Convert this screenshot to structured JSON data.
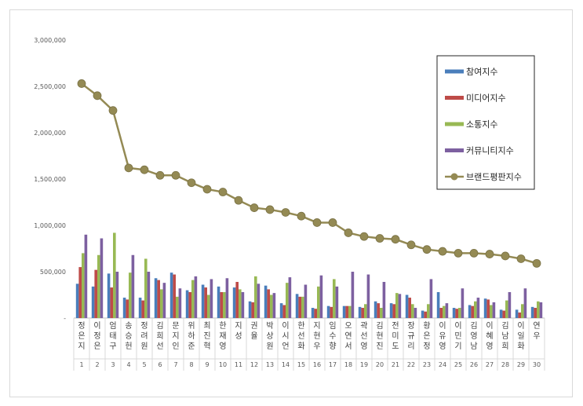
{
  "chart_data": {
    "type": "bar",
    "ylim": [
      0,
      3000000
    ],
    "yticks": [
      "-",
      "500,000",
      "1,000,000",
      "1,500,000",
      "2,000,000",
      "2,500,000",
      "3,000,000"
    ],
    "legend_position": "top-right",
    "grid": false,
    "categories": [
      "정은지",
      "이정은",
      "엄태구",
      "송승헌",
      "정려원",
      "김희선",
      "문지인",
      "위하준",
      "최진혁",
      "한재영",
      "지성",
      "권율",
      "박상원",
      "이시언",
      "한선화",
      "지현우",
      "임수향",
      "오연서",
      "곽선영",
      "김현진",
      "전미도",
      "장규리",
      "황은정",
      "이유영",
      "이민기",
      "김영남",
      "이혜영",
      "김남희",
      "이일화",
      "연우"
    ],
    "indices": [
      "1",
      "2",
      "3",
      "4",
      "5",
      "6",
      "7",
      "8",
      "9",
      "10",
      "11",
      "12",
      "13",
      "14",
      "15",
      "16",
      "17",
      "18",
      "19",
      "20",
      "21",
      "22",
      "23",
      "24",
      "25",
      "26",
      "27",
      "28",
      "29",
      "30"
    ],
    "series": [
      {
        "name": "참여지수",
        "color": "#4a7ebb",
        "values": [
          370000,
          340000,
          480000,
          220000,
          220000,
          430000,
          490000,
          300000,
          360000,
          340000,
          330000,
          180000,
          350000,
          160000,
          260000,
          110000,
          130000,
          130000,
          120000,
          180000,
          160000,
          250000,
          80000,
          280000,
          110000,
          140000,
          210000,
          90000,
          90000,
          120000
        ]
      },
      {
        "name": "미디어지수",
        "color": "#be4b48",
        "values": [
          550000,
          520000,
          330000,
          200000,
          190000,
          410000,
          470000,
          280000,
          330000,
          280000,
          390000,
          170000,
          310000,
          140000,
          230000,
          100000,
          120000,
          130000,
          110000,
          160000,
          150000,
          220000,
          70000,
          110000,
          100000,
          130000,
          200000,
          80000,
          60000,
          110000
        ]
      },
      {
        "name": "소통지수",
        "color": "#98b954",
        "values": [
          700000,
          680000,
          920000,
          490000,
          640000,
          310000,
          230000,
          410000,
          250000,
          280000,
          310000,
          450000,
          250000,
          380000,
          230000,
          340000,
          420000,
          130000,
          150000,
          110000,
          270000,
          150000,
          150000,
          130000,
          110000,
          180000,
          140000,
          190000,
          150000,
          180000
        ]
      },
      {
        "name": "커뮤니티지수",
        "color": "#7d60a0",
        "values": [
          900000,
          860000,
          500000,
          680000,
          500000,
          380000,
          320000,
          450000,
          420000,
          430000,
          280000,
          370000,
          270000,
          440000,
          360000,
          460000,
          340000,
          500000,
          470000,
          390000,
          260000,
          110000,
          420000,
          160000,
          320000,
          220000,
          170000,
          280000,
          320000,
          170000
        ]
      },
      {
        "name": "브랜드평판지수",
        "color": "#948a54",
        "type": "line",
        "values": [
          2530000,
          2400000,
          2240000,
          1620000,
          1600000,
          1540000,
          1540000,
          1460000,
          1390000,
          1360000,
          1270000,
          1190000,
          1170000,
          1140000,
          1100000,
          1030000,
          1030000,
          920000,
          880000,
          860000,
          850000,
          790000,
          740000,
          720000,
          700000,
          700000,
          690000,
          670000,
          640000,
          590000
        ]
      }
    ]
  }
}
